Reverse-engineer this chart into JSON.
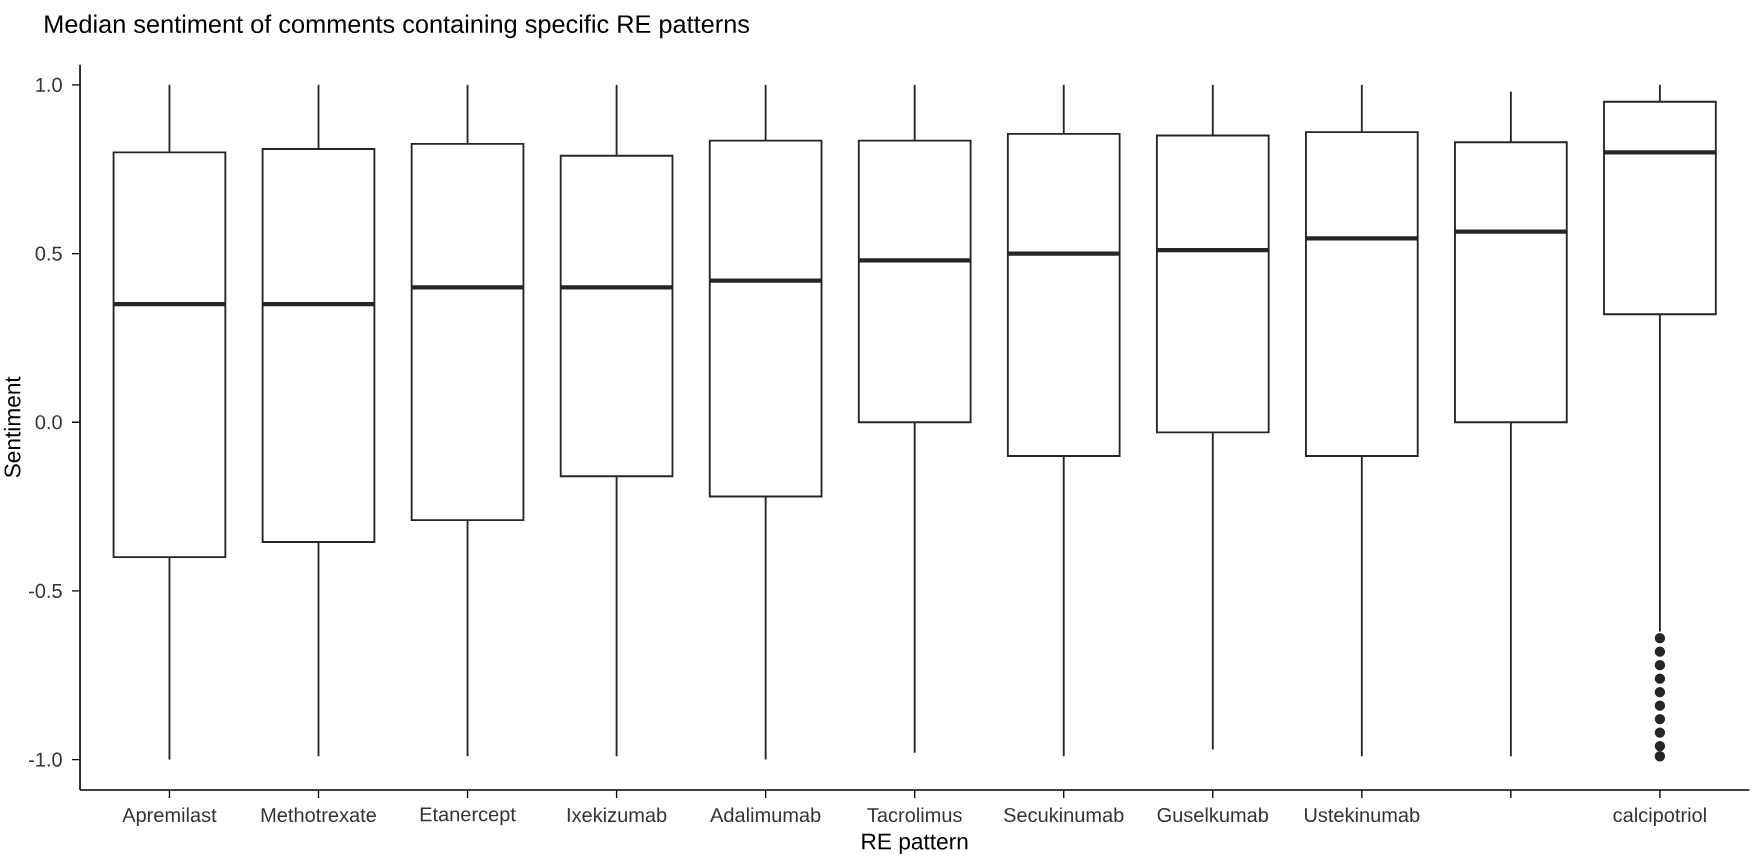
{
  "chart_data": {
    "type": "box",
    "title": "Median sentiment of comments containing specific RE patterns",
    "xlabel": "RE pattern",
    "ylabel": "Sentiment",
    "categories": [
      "Apremilast",
      "Methotrexate",
      "Etanercept",
      "Ixekizumab",
      "Adalimumab",
      "Tacrolimus",
      "Secukinumab",
      "Guselkumab",
      "Ustekinumab",
      null,
      "calcipotriol"
    ],
    "boxes": [
      {
        "low": -1.0,
        "q1": -0.4,
        "median": 0.35,
        "q3": 0.8,
        "high": 1.0
      },
      {
        "low": -0.99,
        "q1": -0.355,
        "median": 0.35,
        "q3": 0.81,
        "high": 1.0
      },
      {
        "low": -0.99,
        "q1": -0.29,
        "median": 0.4,
        "q3": 0.825,
        "high": 1.0
      },
      {
        "low": -0.99,
        "q1": -0.16,
        "median": 0.4,
        "q3": 0.79,
        "high": 1.0
      },
      {
        "low": -1.0,
        "q1": -0.22,
        "median": 0.42,
        "q3": 0.835,
        "high": 1.0
      },
      {
        "low": -0.98,
        "q1": 0.0,
        "median": 0.48,
        "q3": 0.835,
        "high": 1.0
      },
      {
        "low": -0.99,
        "q1": -0.1,
        "median": 0.5,
        "q3": 0.855,
        "high": 1.0
      },
      {
        "low": -0.97,
        "q1": -0.03,
        "median": 0.51,
        "q3": 0.85,
        "high": 1.0
      },
      {
        "low": -0.99,
        "q1": -0.1,
        "median": 0.545,
        "q3": 0.86,
        "high": 1.0
      },
      {
        "low": -0.99,
        "q1": 0.0,
        "median": 0.565,
        "q3": 0.83,
        "high": 0.98
      },
      {
        "low": -0.62,
        "q1": 0.32,
        "median": 0.8,
        "q3": 0.95,
        "high": 1.0,
        "outliers": [
          -0.64,
          -0.68,
          -0.72,
          -0.76,
          -0.8,
          -0.84,
          -0.88,
          -0.92,
          -0.96,
          -0.99
        ]
      }
    ],
    "ylim": [
      -1.09,
      1.06
    ],
    "yticks": [
      {
        "value": -1.0,
        "label": "-1.0"
      },
      {
        "value": -0.5,
        "label": "-0.5"
      },
      {
        "value": 0.0,
        "label": "0.0"
      },
      {
        "value": 0.5,
        "label": "0.5"
      },
      {
        "value": 1.0,
        "label": "1.0"
      }
    ]
  }
}
